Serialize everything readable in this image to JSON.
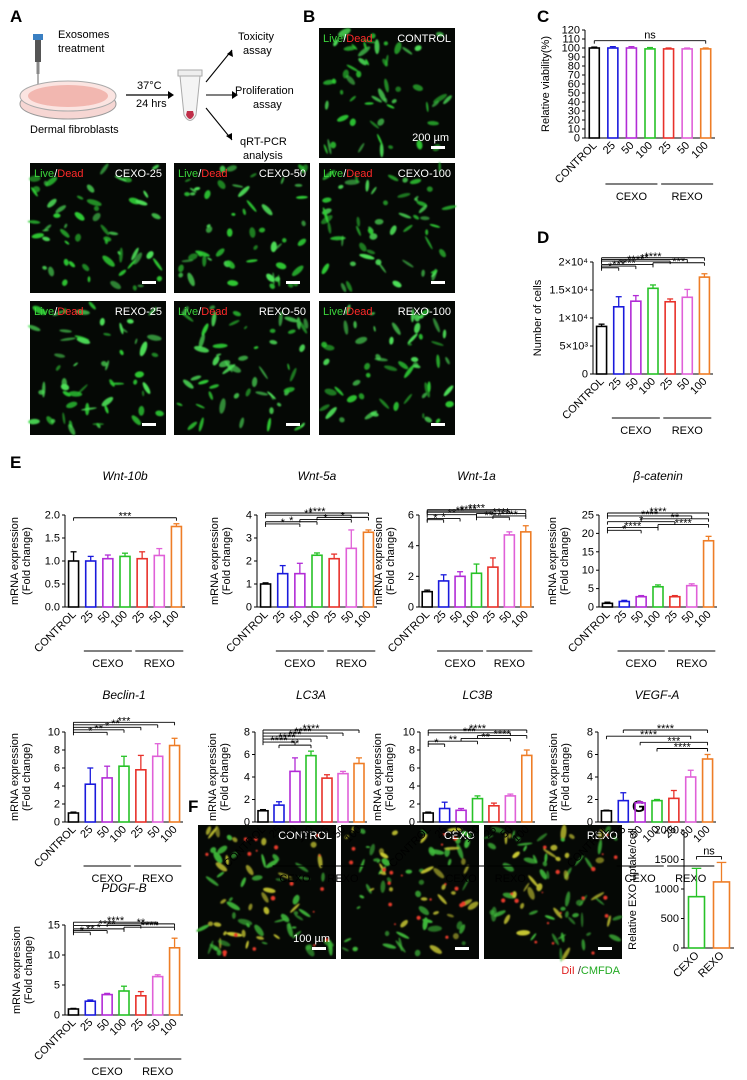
{
  "panel_labels": {
    "A": "A",
    "B": "B",
    "C": "C",
    "D": "D",
    "E": "E",
    "F": "F",
    "G": "G"
  },
  "schematic": {
    "treatment": [
      "Exosomes",
      "treatment"
    ],
    "cells": "Dermal fibroblasts",
    "condition": [
      "37°C",
      "24 hrs"
    ],
    "assays": [
      [
        "Toxicity",
        "assay"
      ],
      [
        "Proliferation",
        "assay"
      ],
      [
        "qRT-PCR",
        "analysis"
      ]
    ]
  },
  "stain": {
    "live": "Live",
    "sep": "/",
    "dead": "Dead"
  },
  "micrographs": [
    {
      "label": "CONTROL",
      "scale": "200 µm"
    },
    {
      "label": "CEXO-25"
    },
    {
      "label": "CEXO-50"
    },
    {
      "label": "CEXO-100"
    },
    {
      "label": "REXO-25"
    },
    {
      "label": "REXO-50"
    },
    {
      "label": "REXO-100"
    }
  ],
  "uptake": {
    "images": [
      {
        "label": "CONTROL",
        "scale": "100 µm"
      },
      {
        "label": "CEXO"
      },
      {
        "label": "REXO"
      }
    ],
    "legend": {
      "a": "DiI",
      "sep": " /",
      "b": "CMFDA"
    }
  },
  "groups": {
    "cexo": "CEXO",
    "rexo": "REXO"
  },
  "x_ticks": [
    "CONTROL",
    "25",
    "50",
    "100",
    "25",
    "50",
    "100"
  ],
  "colors": [
    "#000000",
    "#1a1adc",
    "#b22bd6",
    "#27c227",
    "#e8312a",
    "#e060d8",
    "#ee7d26"
  ],
  "chart_data": [
    {
      "id": "C",
      "type": "bar",
      "title": "",
      "ylabel": "Relative viability(%)",
      "ylim": [
        0,
        120
      ],
      "yticks": [
        0,
        10,
        20,
        30,
        40,
        50,
        60,
        70,
        80,
        90,
        100,
        110,
        120
      ],
      "values": [
        100,
        100,
        100,
        99,
        99,
        99,
        99
      ],
      "errors": [
        1,
        1.5,
        1.5,
        1.5,
        1,
        1,
        1
      ],
      "annotations": [
        {
          "text": "ns",
          "from": 0,
          "to": 6
        }
      ]
    },
    {
      "id": "D",
      "type": "bar",
      "title": "",
      "ylabel": "Number of cells",
      "ylim": [
        0,
        20000
      ],
      "yticks": [
        0,
        5000,
        10000,
        15000,
        20000
      ],
      "ytick_labels": [
        "0",
        "5×10³",
        "1×10⁴",
        "1.5×10⁴",
        "2×10⁴"
      ],
      "values": [
        8500,
        12000,
        13000,
        15300,
        12900,
        13700,
        17300
      ],
      "errors": [
        400,
        1800,
        1000,
        600,
        500,
        1400,
        600
      ],
      "annotations": [
        {
          "text": "*",
          "from": 0,
          "to": 1
        },
        {
          "text": "***",
          "from": 0,
          "to": 2
        },
        {
          "text": "****",
          "from": 0,
          "to": 3
        },
        {
          "text": "***",
          "from": 3,
          "to": 6
        },
        {
          "text": "****",
          "from": 0,
          "to": 4
        },
        {
          "text": "**",
          "from": 0,
          "to": 5
        },
        {
          "text": "****",
          "from": 0,
          "to": 6
        }
      ]
    },
    {
      "id": "Wnt-10b",
      "type": "bar",
      "title": "Wnt-10b",
      "ylabel": "mRNA expression (Fold change)",
      "ylim": [
        0,
        2.0
      ],
      "yticks": [
        0,
        0.5,
        1.0,
        1.5,
        2.0
      ],
      "ytick_labels": [
        "0.0",
        "0.5",
        "1.0",
        "1.5",
        "2.0"
      ],
      "values": [
        1.0,
        1.0,
        1.05,
        1.1,
        1.05,
        1.12,
        1.75
      ],
      "errors": [
        0.2,
        0.1,
        0.08,
        0.07,
        0.15,
        0.15,
        0.06
      ],
      "annotations": [
        {
          "text": "***",
          "from": 0,
          "to": 6
        }
      ]
    },
    {
      "id": "Wnt-5a",
      "type": "bar",
      "title": "Wnt-5a",
      "ylabel": "mRNA expression (Fold change)",
      "ylim": [
        0,
        4
      ],
      "yticks": [
        0,
        1,
        2,
        3,
        4
      ],
      "values": [
        1.0,
        1.45,
        1.45,
        2.25,
        2.1,
        2.55,
        3.25
      ],
      "errors": [
        0.05,
        0.35,
        0.45,
        0.1,
        0.2,
        0.8,
        0.1
      ],
      "annotations": [
        {
          "text": "*",
          "from": 0,
          "to": 2
        },
        {
          "text": "*",
          "from": 0,
          "to": 3
        },
        {
          "text": "*",
          "from": 2,
          "to": 5
        },
        {
          "text": "*",
          "from": 3,
          "to": 6
        },
        {
          "text": "**",
          "from": 0,
          "to": 5
        },
        {
          "text": "****",
          "from": 0,
          "to": 6
        }
      ]
    },
    {
      "id": "Wnt-1a",
      "type": "bar",
      "title": "Wnt-1a",
      "ylabel": "mRNA expression (Fold change)",
      "ylim": [
        0,
        6
      ],
      "yticks": [
        0,
        2,
        4,
        6
      ],
      "values": [
        1.0,
        1.7,
        2.0,
        2.2,
        2.6,
        4.7,
        4.9
      ],
      "errors": [
        0.1,
        0.4,
        0.3,
        0.6,
        0.6,
        0.2,
        0.4
      ],
      "annotations": [
        {
          "text": "*",
          "from": 0,
          "to": 1
        },
        {
          "text": "*",
          "from": 0,
          "to": 2
        },
        {
          "text": "**",
          "from": 0,
          "to": 3
        },
        {
          "text": "**",
          "from": 0,
          "to": 4
        },
        {
          "text": "****",
          "from": 0,
          "to": 5
        },
        {
          "text": "****",
          "from": 0,
          "to": 6
        },
        {
          "text": "****",
          "from": 3,
          "to": 5
        },
        {
          "text": "****",
          "from": 3,
          "to": 6
        },
        {
          "text": "****",
          "from": 4,
          "to": 6
        }
      ]
    },
    {
      "id": "beta-catenin",
      "type": "bar",
      "title": "β-catenin",
      "ylabel": "mRNA expression (Fold change)",
      "ylim": [
        0,
        25
      ],
      "yticks": [
        0,
        5,
        10,
        15,
        20,
        25
      ],
      "values": [
        1.0,
        1.5,
        2.8,
        5.5,
        2.8,
        5.8,
        18.0
      ],
      "errors": [
        0.3,
        0.3,
        0.3,
        0.5,
        0.3,
        0.5,
        1.2
      ],
      "annotations": [
        {
          "text": "*",
          "from": 0,
          "to": 2
        },
        {
          "text": "****",
          "from": 0,
          "to": 3
        },
        {
          "text": "*",
          "from": 0,
          "to": 4
        },
        {
          "text": "****",
          "from": 0,
          "to": 5
        },
        {
          "text": "**",
          "from": 2,
          "to": 6
        },
        {
          "text": "****",
          "from": 0,
          "to": 6
        },
        {
          "text": "****",
          "from": 3,
          "to": 6
        }
      ]
    },
    {
      "id": "Beclin-1",
      "type": "bar",
      "title": "Beclin-1",
      "ylabel": "mRNA expression (Fold change)",
      "ylim": [
        0,
        10
      ],
      "yticks": [
        0,
        2,
        4,
        6,
        8,
        10
      ],
      "values": [
        1.0,
        4.2,
        4.9,
        6.2,
        5.8,
        7.3,
        8.5
      ],
      "errors": [
        0.1,
        1.8,
        1.3,
        1.1,
        1.6,
        1.4,
        0.8
      ],
      "annotations": [
        {
          "text": "*",
          "from": 0,
          "to": 2
        },
        {
          "text": "**",
          "from": 0,
          "to": 3
        },
        {
          "text": "*",
          "from": 0,
          "to": 4
        },
        {
          "text": "**",
          "from": 0,
          "to": 5
        },
        {
          "text": "***",
          "from": 0,
          "to": 6
        }
      ]
    },
    {
      "id": "LC3A",
      "type": "bar",
      "title": "LC3A",
      "ylabel": "mRNA expression (Fold change)",
      "ylim": [
        0,
        8
      ],
      "yticks": [
        0,
        2,
        4,
        6,
        8
      ],
      "values": [
        1.0,
        1.5,
        4.5,
        5.9,
        3.9,
        4.3,
        5.2
      ],
      "errors": [
        0.1,
        0.3,
        1.2,
        0.4,
        0.3,
        0.2,
        0.5
      ],
      "annotations": [
        {
          "text": "**",
          "from": 1,
          "to": 3
        },
        {
          "text": "****",
          "from": 0,
          "to": 2
        },
        {
          "text": "****",
          "from": 0,
          "to": 3
        },
        {
          "text": "***",
          "from": 0,
          "to": 4
        },
        {
          "text": "****",
          "from": 0,
          "to": 5
        },
        {
          "text": "****",
          "from": 0,
          "to": 6
        }
      ]
    },
    {
      "id": "LC3B",
      "type": "bar",
      "title": "LC3B",
      "ylabel": "mRNA expression (Fold change)",
      "ylim": [
        0,
        10
      ],
      "yticks": [
        0,
        2,
        4,
        6,
        8,
        10
      ],
      "values": [
        1.0,
        1.5,
        1.3,
        2.6,
        1.8,
        2.9,
        7.4
      ],
      "errors": [
        0.1,
        0.7,
        0.2,
        0.3,
        0.3,
        0.2,
        0.6
      ],
      "annotations": [
        {
          "text": "*",
          "from": 0,
          "to": 1
        },
        {
          "text": "**",
          "from": 0,
          "to": 3
        },
        {
          "text": "***",
          "from": 0,
          "to": 5
        },
        {
          "text": "**",
          "from": 2,
          "to": 5
        },
        {
          "text": "****",
          "from": 0,
          "to": 6
        },
        {
          "text": "****",
          "from": 3,
          "to": 6
        }
      ]
    },
    {
      "id": "VEGF-A",
      "type": "bar",
      "title": "VEGF-A",
      "ylabel": "mRNA expression (Fold change)",
      "ylim": [
        0,
        8
      ],
      "yticks": [
        0,
        2,
        4,
        6,
        8
      ],
      "values": [
        1.0,
        1.9,
        1.7,
        1.9,
        2.1,
        4.0,
        5.6
      ],
      "errors": [
        0.05,
        0.7,
        0.1,
        0.1,
        0.7,
        0.6,
        0.4
      ],
      "annotations": [
        {
          "text": "****",
          "from": 0,
          "to": 5
        },
        {
          "text": "****",
          "from": 1,
          "to": 6
        },
        {
          "text": "***",
          "from": 2,
          "to": 6
        },
        {
          "text": "****",
          "from": 3,
          "to": 6
        }
      ]
    },
    {
      "id": "PDGF-B",
      "type": "bar",
      "title": "PDGF-B",
      "ylabel": "mRNA expression (Fold change)",
      "ylim": [
        0,
        15
      ],
      "yticks": [
        0,
        5,
        10,
        15
      ],
      "values": [
        1.0,
        2.3,
        3.4,
        4.0,
        3.2,
        6.4,
        11.2
      ],
      "errors": [
        0.1,
        0.2,
        0.2,
        0.8,
        0.7,
        0.3,
        1.6
      ],
      "annotations": [
        {
          "text": "*",
          "from": 0,
          "to": 1
        },
        {
          "text": "**",
          "from": 0,
          "to": 2
        },
        {
          "text": "*",
          "from": 0,
          "to": 3
        },
        {
          "text": "****",
          "from": 0,
          "to": 4
        },
        {
          "text": "****",
          "from": 0,
          "to": 5
        },
        {
          "text": "**",
          "from": 2,
          "to": 6
        },
        {
          "text": "****",
          "from": 3,
          "to": 6
        }
      ]
    },
    {
      "id": "G",
      "type": "bar",
      "title": "",
      "ylabel": "Relative EXO uptake/cell",
      "ylim": [
        0,
        2000
      ],
      "yticks": [
        0,
        500,
        1000,
        1500,
        2000
      ],
      "categories": [
        "CEXO",
        "REXO"
      ],
      "values": [
        870,
        1120
      ],
      "errors": [
        480,
        330
      ],
      "colors": [
        "#27c227",
        "#ee7d26"
      ],
      "annotations": [
        {
          "text": "ns",
          "from": 0,
          "to": 1
        }
      ]
    }
  ]
}
